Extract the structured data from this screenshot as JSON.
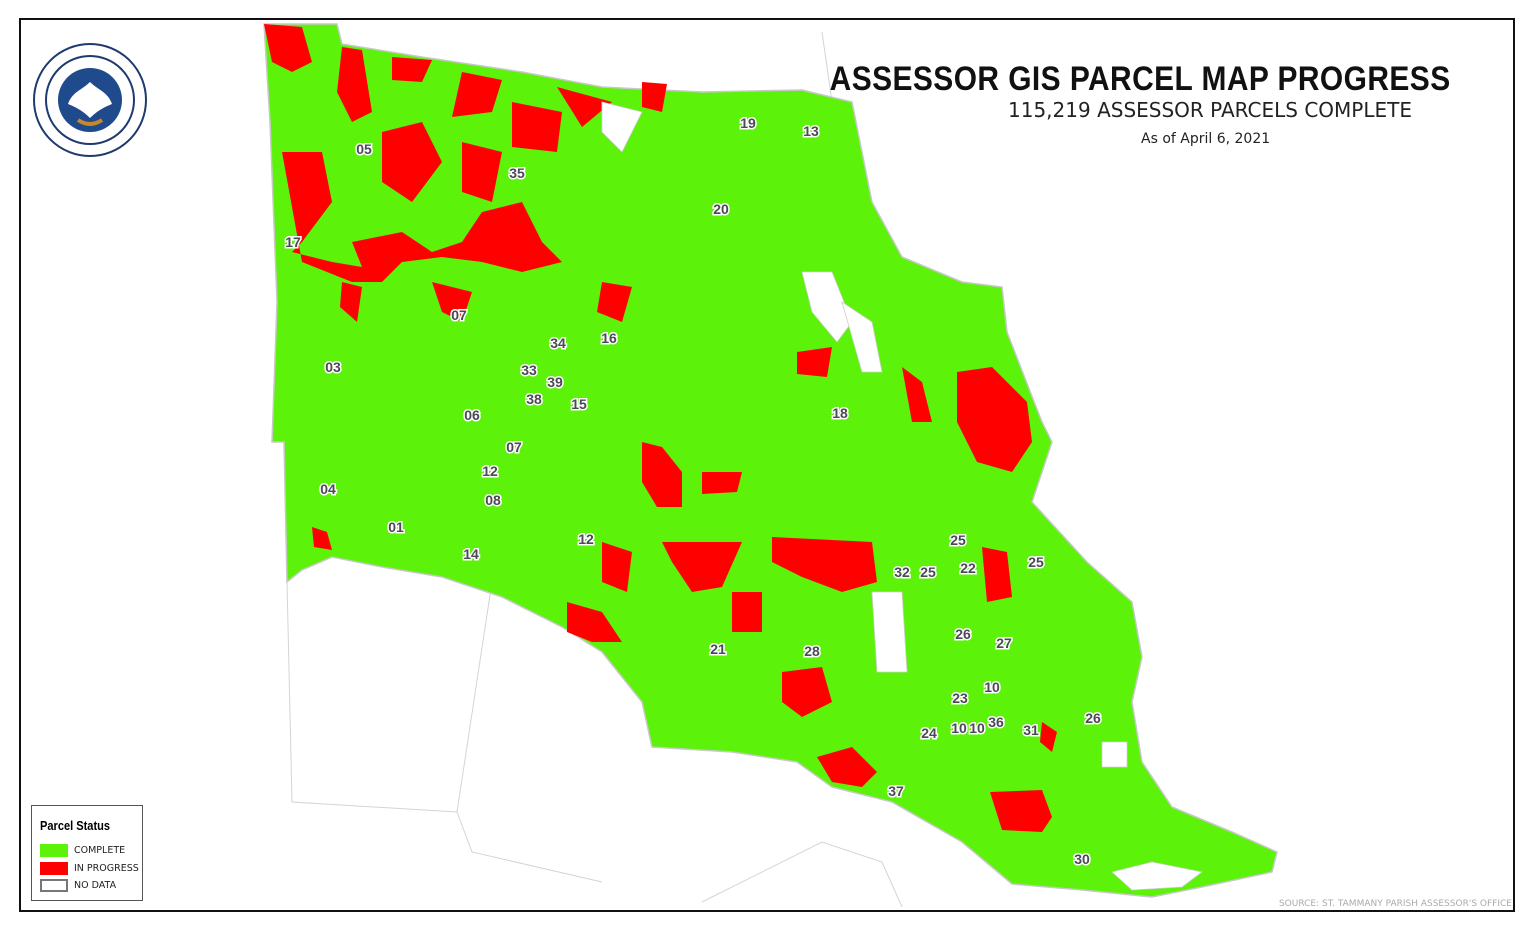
{
  "header": {
    "title": "ASSESSOR GIS PARCEL MAP PROGRESS",
    "subtitle": "115,219 ASSESSOR PARCELS COMPLETE",
    "as_of": "As of April 6, 2021"
  },
  "seal": {
    "text": [
      "LOUIS FITZMORRIS",
      "STATE OF LOUISIANA",
      "UNION · JUSTICE",
      "CONFIDENCE",
      "ASSESSOR · PARISH OF ST. TAMMANY"
    ]
  },
  "legend": {
    "title": "Parcel Status",
    "items": [
      {
        "label": "COMPLETE",
        "color": "#5df20a"
      },
      {
        "label": "IN PROGRESS",
        "color": "#ff0000"
      },
      {
        "label": "NO DATA",
        "color": "#ffffff"
      }
    ]
  },
  "ward_labels": [
    "05",
    "35",
    "19",
    "13",
    "20",
    "17",
    "07",
    "34",
    "16",
    "03",
    "33",
    "39",
    "38",
    "15",
    "06",
    "18",
    "07",
    "12",
    "04",
    "08",
    "01",
    "14",
    "12",
    "25",
    "32",
    "25",
    "22",
    "25",
    "26",
    "27",
    "21",
    "28",
    "23",
    "10",
    "10",
    "10",
    "36",
    "31",
    "24",
    "26",
    "37",
    "30"
  ],
  "source": "SOURCE: ST. TAMMANY PARISH ASSESSOR'S OFFICE"
}
